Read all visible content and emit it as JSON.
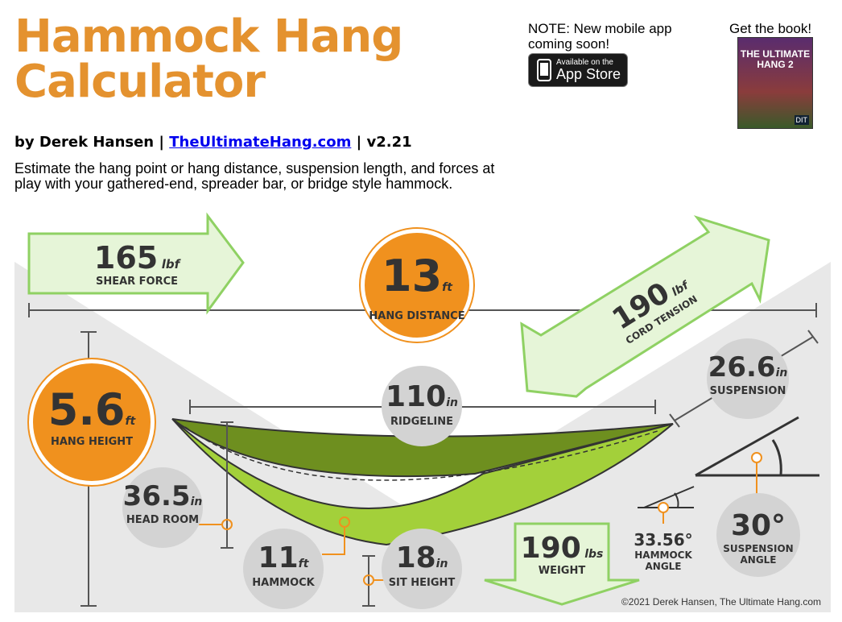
{
  "header": {
    "title_line1": "Hammock Hang",
    "title_line2": "Calculator",
    "byline_prefix": "by Derek Hansen | ",
    "byline_link": "TheUltimateHang.com",
    "byline_suffix": " | v2.21",
    "description": "Estimate the hang point or hang distance, suspension length, and forces at play with your gathered-end, spreader bar, or bridge style hammock."
  },
  "promo": {
    "note": "NOTE: New mobile app coming soon!",
    "appstore_small": "Available on the",
    "appstore_big": "App Store",
    "book_label": "Get the book!",
    "book_title": "THE ULTIMATE HANG 2",
    "book_badge": "DIT"
  },
  "metrics": {
    "shear_force": {
      "value": "165",
      "unit": "lbf",
      "label": "SHEAR FORCE"
    },
    "hang_distance": {
      "value": "13",
      "unit": "ft",
      "label": "HANG DISTANCE"
    },
    "cord_tension": {
      "value": "190",
      "unit": "lbf",
      "label": "CORD TENSION"
    },
    "suspension": {
      "value": "26.6",
      "unit": "in",
      "label": "SUSPENSION"
    },
    "hang_height": {
      "value": "5.6",
      "unit": "ft",
      "label": "HANG HEIGHT"
    },
    "ridgeline": {
      "value": "110",
      "unit": "in",
      "label": "RIDGELINE"
    },
    "head_room": {
      "value": "36.5",
      "unit": "in",
      "label": "HEAD ROOM"
    },
    "hammock": {
      "value": "11",
      "unit": "ft",
      "label": "HAMMOCK"
    },
    "sit_height": {
      "value": "18",
      "unit": "in",
      "label": "SIT HEIGHT"
    },
    "weight": {
      "value": "190",
      "unit": "lbs",
      "label": "WEIGHT"
    },
    "hammock_angle": {
      "value": "33.56°",
      "label_line1": "HAMMOCK",
      "label_line2": "ANGLE"
    },
    "suspension_angle": {
      "value": "30°",
      "label_line1": "SUSPENSION",
      "label_line2": "ANGLE"
    }
  },
  "colors": {
    "orange": "#f0911e",
    "title_orange": "#e4922f",
    "arrow_green": "#e6f5d8",
    "arrow_stroke": "#8fd163",
    "hammock_dark": "#6e8f1f",
    "hammock_light": "#a3d03a"
  },
  "footer": {
    "copyright": "©2021 Derek Hansen, The Ultimate Hang.com"
  }
}
